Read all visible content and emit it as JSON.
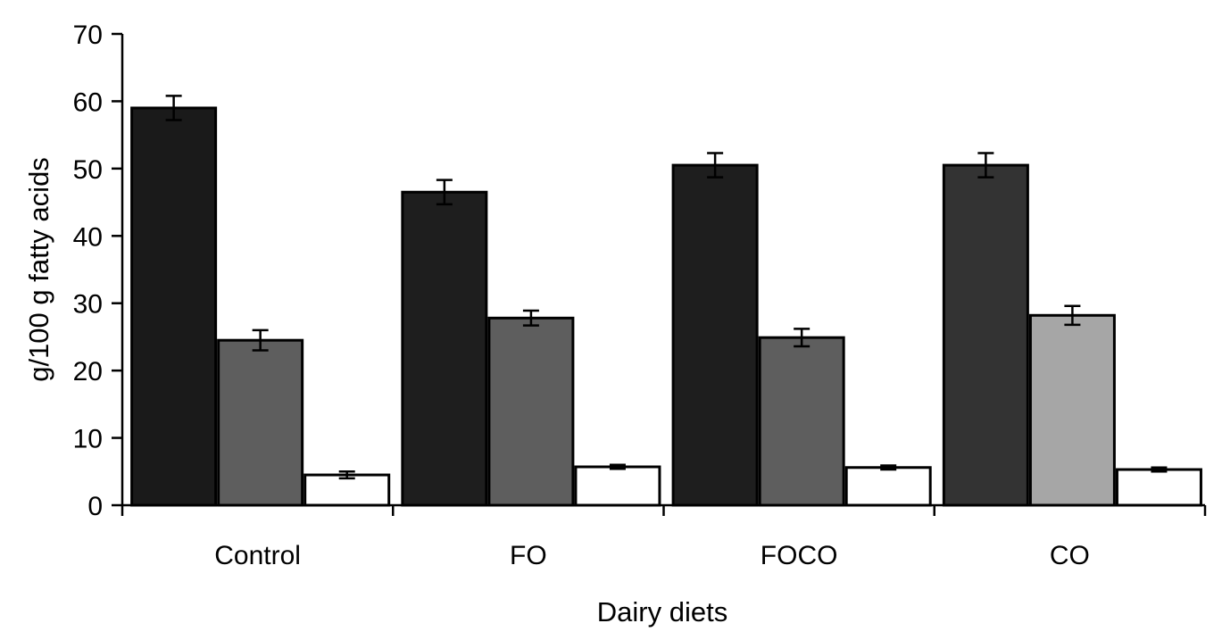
{
  "chart_data": {
    "type": "bar",
    "title": "",
    "xlabel": "Dairy diets",
    "ylabel": "g/100 g fatty acids",
    "ylim": [
      0,
      70
    ],
    "yticks": [
      0,
      10,
      20,
      30,
      40,
      50,
      60,
      70
    ],
    "categories": [
      "Control",
      "FO",
      "FOCO",
      "CO"
    ],
    "grid": false,
    "legend": "none",
    "series": [
      {
        "values": [
          59.0,
          46.5,
          50.5,
          50.5
        ],
        "errors": [
          1.8,
          1.8,
          1.8,
          1.8
        ]
      },
      {
        "values": [
          24.5,
          27.8,
          24.9,
          28.2
        ],
        "errors": [
          1.5,
          1.1,
          1.3,
          1.4
        ]
      },
      {
        "values": [
          4.5,
          5.7,
          5.6,
          5.3
        ],
        "errors": [
          0.5,
          0.3,
          0.3,
          0.3
        ]
      }
    ],
    "bar_colors": [
      [
        "#1a1a1a",
        "#1e1e1e",
        "#1e1e1e",
        "#333333"
      ],
      [
        "#5e5e5e",
        "#5e5e5e",
        "#5e5e5e",
        "#a6a6a6"
      ],
      [
        "#ffffff",
        "#ffffff",
        "#ffffff",
        "#ffffff"
      ]
    ]
  }
}
